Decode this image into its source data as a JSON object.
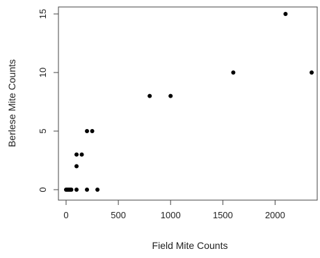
{
  "chart_data": {
    "type": "scatter",
    "xlabel": "Field  Mite Counts",
    "ylabel": "Berlese Mite Counts",
    "xlim": [
      0,
      2350
    ],
    "ylim": [
      0,
      15
    ],
    "x_ticks": [
      0,
      500,
      1000,
      1500,
      2000
    ],
    "y_ticks": [
      0,
      5,
      10,
      15
    ],
    "grid": false,
    "marker_color": "#000000",
    "points": [
      {
        "x": 0,
        "y": 0
      },
      {
        "x": 10,
        "y": 0
      },
      {
        "x": 20,
        "y": 0
      },
      {
        "x": 30,
        "y": 0
      },
      {
        "x": 40,
        "y": 0
      },
      {
        "x": 50,
        "y": 0
      },
      {
        "x": 100,
        "y": 0
      },
      {
        "x": 200,
        "y": 0
      },
      {
        "x": 300,
        "y": 0
      },
      {
        "x": 100,
        "y": 2
      },
      {
        "x": 100,
        "y": 3
      },
      {
        "x": 150,
        "y": 3
      },
      {
        "x": 200,
        "y": 5
      },
      {
        "x": 250,
        "y": 5
      },
      {
        "x": 800,
        "y": 8
      },
      {
        "x": 1000,
        "y": 8
      },
      {
        "x": 1600,
        "y": 10
      },
      {
        "x": 2100,
        "y": 15
      },
      {
        "x": 2350,
        "y": 10
      }
    ]
  }
}
